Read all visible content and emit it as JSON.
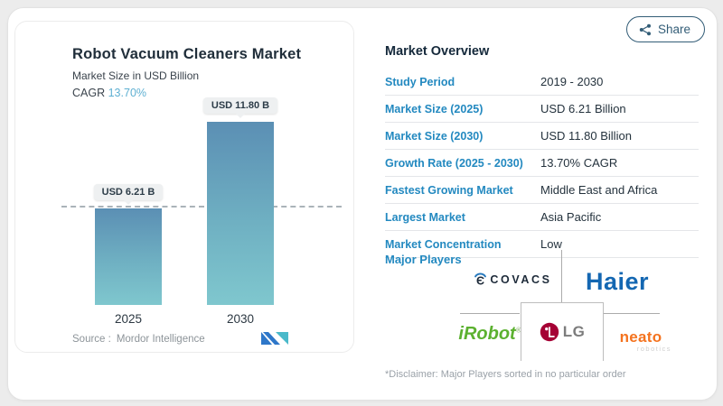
{
  "colors": {
    "accent_blue": "#2389c0",
    "cagr_teal": "#5fb0d2",
    "bar_gradient_top": "#5b8fb4",
    "bar_gradient_bottom": "#7fc7ce",
    "share_slate": "#335d77",
    "haier_blue": "#1467b2",
    "irobot_green": "#5cb130",
    "lg_magenta": "#a50034",
    "neato_orange": "#f4731f",
    "ecovacs_navy": "#1d2a39"
  },
  "share_button": {
    "label": "Share",
    "icon": "share-nodes-icon"
  },
  "chart_panel": {
    "title": "Robot Vacuum Cleaners Market",
    "subtitle": "Market Size in USD Billion",
    "cagr_label": "CAGR",
    "cagr_value": "13.70%",
    "bars": [
      {
        "year": "2025",
        "label": "USD 6.21 B"
      },
      {
        "year": "2030",
        "label": "USD 11.80 B"
      }
    ],
    "source_label": "Source :",
    "source_value": "Mordor Intelligence",
    "logo": "mordor-intelligence-logo"
  },
  "chart_data": {
    "type": "bar",
    "title": "Robot Vacuum Cleaners Market",
    "ylabel": "Market Size in USD Billion",
    "categories": [
      "2025",
      "2030"
    ],
    "values": [
      6.21,
      11.8
    ],
    "data_labels": [
      "USD 6.21 B",
      "USD 11.80 B"
    ],
    "cagr_pct": 13.7,
    "reference_line_y": 6.21,
    "ylim": [
      0,
      12.5
    ],
    "grid": false,
    "legend": false
  },
  "overview": {
    "title": "Market Overview",
    "rows": [
      {
        "label": "Study Period",
        "value": "2019 - 2030"
      },
      {
        "label": "Market Size (2025)",
        "value": "USD 6.21 Billion"
      },
      {
        "label": "Market Size (2030)",
        "value": "USD 11.80 Billion"
      },
      {
        "label": "Growth Rate (2025 - 2030)",
        "value": "13.70% CAGR"
      },
      {
        "label": "Fastest Growing Market",
        "value": "Middle East and Africa"
      },
      {
        "label": "Largest Market",
        "value": "Asia Pacific"
      },
      {
        "label": "Market Concentration",
        "value": "Low"
      }
    ],
    "major_players_label": "Major Players",
    "players": {
      "ecovacs": {
        "name": "ECOVACS",
        "glyph": "Є",
        "text": "COVACS"
      },
      "haier": {
        "name": "Haier"
      },
      "irobot": {
        "name": "iRobot",
        "mark": "®"
      },
      "lg": {
        "name": "LG"
      },
      "neato": {
        "name": "neato",
        "sub": "robotics"
      }
    },
    "disclaimer": "*Disclaimer: Major Players sorted in no particular order"
  }
}
